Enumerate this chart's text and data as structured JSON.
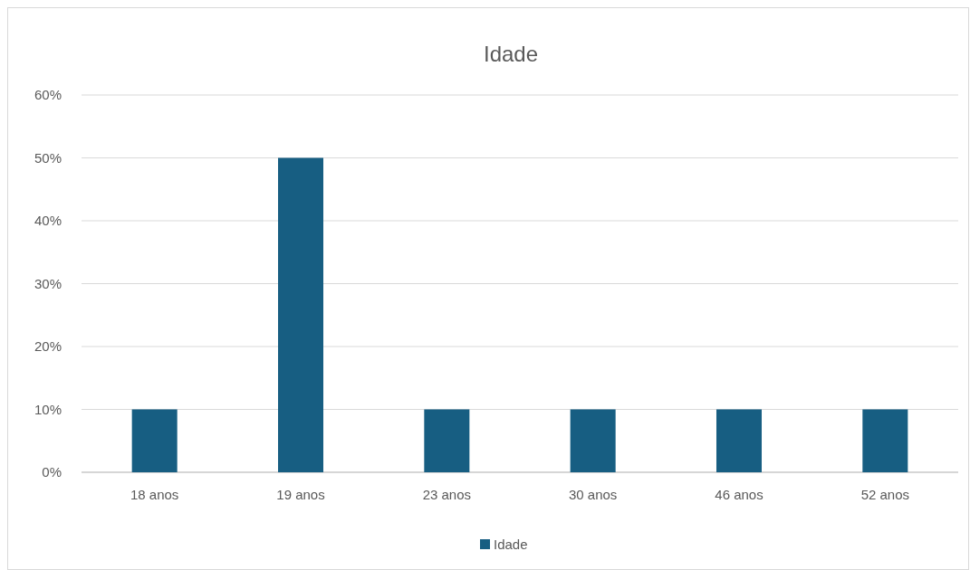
{
  "chart_data": {
    "type": "bar",
    "title": "Idade",
    "categories": [
      "18 anos",
      "19 anos",
      "23 anos",
      "30 anos",
      "46 anos",
      "52 anos"
    ],
    "series": [
      {
        "name": "Idade",
        "color": "#175e82",
        "values": [
          10,
          50,
          10,
          10,
          10,
          10
        ]
      }
    ],
    "ylim": [
      0,
      60
    ],
    "yticks": [
      {
        "value": 0,
        "label": "0%"
      },
      {
        "value": 10,
        "label": "10%"
      },
      {
        "value": 20,
        "label": "20%"
      },
      {
        "value": 30,
        "label": "30%"
      },
      {
        "value": 40,
        "label": "40%"
      },
      {
        "value": 50,
        "label": "50%"
      },
      {
        "value": 60,
        "label": "60%"
      }
    ],
    "grid": "y",
    "legend": "bottom"
  }
}
